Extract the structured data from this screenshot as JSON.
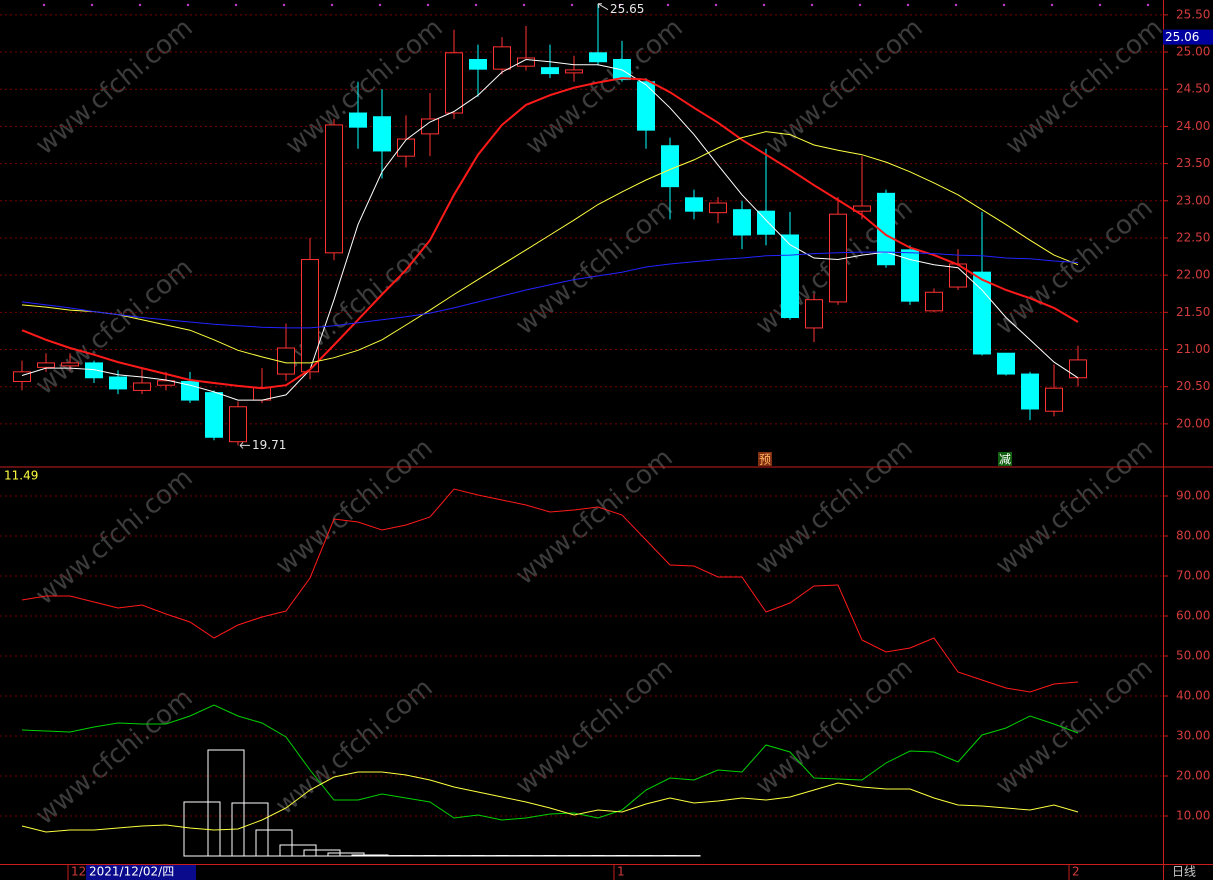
{
  "watermark": "www.cfchi.com",
  "chart_data": [
    {
      "type": "candlestick",
      "ylim": [
        19.42,
        25.7
      ],
      "yticks": [
        {
          "value": 20,
          "label": "20.00"
        },
        {
          "value": 20.5,
          "label": "20.50"
        },
        {
          "value": 21,
          "label": "21.00"
        },
        {
          "value": 21.5,
          "label": "21.50"
        },
        {
          "value": 22,
          "label": "22.00"
        },
        {
          "value": 22.5,
          "label": "22.50"
        },
        {
          "value": 23,
          "label": "23.00"
        },
        {
          "value": 23.5,
          "label": "23.50"
        },
        {
          "value": 24,
          "label": "24.00"
        },
        {
          "value": 24.5,
          "label": "24.50"
        },
        {
          "value": 25,
          "label": "25.00"
        },
        {
          "value": 25.5,
          "label": "25.50"
        }
      ],
      "grid": true,
      "up_color": "#ff3232",
      "down_color": "#00ffff",
      "open": [
        20.57,
        20.76,
        20.78,
        20.82,
        20.63,
        20.45,
        20.52,
        20.57,
        20.42,
        19.76,
        20.32,
        20.67,
        20.7,
        22.3,
        24.18,
        24.13,
        23.6,
        23.9,
        24.18,
        24.9,
        24.77,
        24.81,
        24.79,
        24.72,
        24.99,
        24.9,
        24.6,
        23.74,
        23.04,
        22.84,
        22.88,
        22.86,
        22.54,
        21.29,
        21.64,
        22.86,
        23.1,
        22.34,
        21.52,
        21.84,
        22.04,
        20.95,
        20.67,
        20.17,
        20.62
      ],
      "high": [
        20.85,
        20.95,
        20.95,
        20.85,
        20.72,
        20.75,
        20.7,
        20.7,
        20.45,
        20.3,
        20.75,
        21.35,
        22.5,
        24.1,
        24.6,
        24.5,
        24.15,
        24.45,
        25.3,
        25.1,
        25.2,
        25.35,
        25.1,
        24.95,
        25.65,
        25.15,
        24.65,
        23.85,
        23.15,
        23.05,
        23.0,
        23.7,
        22.85,
        21.75,
        23.05,
        23.6,
        23.15,
        22.4,
        21.82,
        22.35,
        22.85,
        20.95,
        20.7,
        20.8,
        21.05
      ],
      "low": [
        20.45,
        20.7,
        20.72,
        20.55,
        20.4,
        20.4,
        20.45,
        20.28,
        19.78,
        19.71,
        20.28,
        20.58,
        20.6,
        22.2,
        23.7,
        23.3,
        23.45,
        23.6,
        24.1,
        24.4,
        24.7,
        24.75,
        24.65,
        24.6,
        24.82,
        24.6,
        23.7,
        22.75,
        22.75,
        22.7,
        22.35,
        22.4,
        21.4,
        21.1,
        21.6,
        22.75,
        22.1,
        21.6,
        21.5,
        21.8,
        20.92,
        20.65,
        20.05,
        20.1,
        20.5
      ],
      "close": [
        20.7,
        20.82,
        20.82,
        20.62,
        20.47,
        20.55,
        20.58,
        20.32,
        19.82,
        20.23,
        20.49,
        21.02,
        22.21,
        24.02,
        23.99,
        23.67,
        23.83,
        24.1,
        24.99,
        24.77,
        25.07,
        24.92,
        24.71,
        24.76,
        24.87,
        24.63,
        23.95,
        23.19,
        22.86,
        22.97,
        22.54,
        22.55,
        21.43,
        21.67,
        22.82,
        22.93,
        22.14,
        21.65,
        21.77,
        22.15,
        20.94,
        20.67,
        20.2,
        20.48,
        20.86
      ],
      "series": [
        {
          "color": "#ffffff",
          "values": [
            20.65,
            20.75,
            20.75,
            20.73,
            20.66,
            20.63,
            20.59,
            20.52,
            20.43,
            20.32,
            20.32,
            20.39,
            20.73,
            21.67,
            22.68,
            23.39,
            23.82,
            24.06,
            24.2,
            24.42,
            24.73,
            24.9,
            24.87,
            24.83,
            24.83,
            24.76,
            24.56,
            24.25,
            23.89,
            23.48,
            23.08,
            22.74,
            22.41,
            22.23,
            22.21,
            22.27,
            22.31,
            22.21,
            22.14,
            22.1,
            21.8,
            21.43,
            21.13,
            20.83,
            20.62
          ]
        },
        {
          "color": "#ff1a1a",
          "values": [
            21.26,
            21.13,
            21.02,
            20.93,
            20.83,
            20.75,
            20.67,
            20.59,
            20.55,
            20.51,
            20.48,
            20.52,
            20.73,
            21.06,
            21.4,
            21.74,
            22.07,
            22.47,
            23.08,
            23.62,
            24.02,
            24.29,
            24.42,
            24.52,
            24.59,
            24.65,
            24.63,
            24.46,
            24.25,
            24.05,
            23.82,
            23.62,
            23.42,
            23.21,
            23.01,
            22.81,
            22.54,
            22.37,
            22.27,
            22.14,
            21.94,
            21.8,
            21.69,
            21.56,
            21.37
          ]
        },
        {
          "color": "#ffff40",
          "values": [
            21.6,
            21.57,
            21.53,
            21.51,
            21.47,
            21.4,
            21.33,
            21.26,
            21.13,
            20.99,
            20.9,
            20.82,
            20.82,
            20.89,
            20.99,
            21.13,
            21.33,
            21.53,
            21.74,
            21.94,
            22.14,
            22.34,
            22.54,
            22.74,
            22.95,
            23.12,
            23.28,
            23.42,
            23.55,
            23.71,
            23.85,
            23.93,
            23.89,
            23.75,
            23.68,
            23.62,
            23.52,
            23.39,
            23.24,
            23.08,
            22.88,
            22.68,
            22.47,
            22.27,
            22.14
          ]
        },
        {
          "color": "#2323ff",
          "values": [
            21.64,
            21.6,
            21.56,
            21.51,
            21.47,
            21.43,
            21.4,
            21.37,
            21.34,
            21.32,
            21.3,
            21.29,
            21.29,
            21.32,
            21.36,
            21.4,
            21.44,
            21.49,
            21.56,
            21.64,
            21.72,
            21.8,
            21.87,
            21.94,
            21.99,
            22.04,
            22.11,
            22.15,
            22.18,
            22.21,
            22.23,
            22.26,
            22.27,
            22.29,
            22.3,
            22.31,
            22.31,
            22.3,
            22.29,
            22.27,
            22.26,
            22.23,
            22.22,
            22.19,
            22.17
          ]
        }
      ],
      "price_marker": 25.06,
      "annotations": [
        "预",
        "减"
      ]
    },
    {
      "type": "line",
      "ylim": [
        -2,
        97.25
      ],
      "yticks": [
        {
          "value": 10,
          "label": "10.00"
        },
        {
          "value": 20,
          "label": "20.00"
        },
        {
          "value": 30,
          "label": "30.00"
        },
        {
          "value": 40,
          "label": "40.00"
        },
        {
          "value": 50,
          "label": "50.00"
        },
        {
          "value": 60,
          "label": "60.00"
        },
        {
          "value": 70,
          "label": "70.00"
        },
        {
          "value": 80,
          "label": "80.00"
        },
        {
          "value": 90,
          "label": "90.00"
        }
      ],
      "grid": true,
      "indicator_value": 11.49,
      "series": [
        {
          "color": "#ff1a1a",
          "values": [
            64,
            65,
            65,
            63.5,
            62,
            62.75,
            60.5,
            58.5,
            54.5,
            57.75,
            59.75,
            61.25,
            69.5,
            84.25,
            83.5,
            81.5,
            82.75,
            84.75,
            91.75,
            90.25,
            89,
            87.75,
            86,
            86.5,
            87.25,
            85.25,
            79,
            72.75,
            72.5,
            69.75,
            69.75,
            61,
            63.25,
            67.5,
            67.75,
            54,
            51,
            52,
            54.5,
            46,
            44,
            42,
            41,
            43,
            43.5
          ]
        },
        {
          "color": "#00d200",
          "values": [
            31.5,
            31.25,
            31,
            32.25,
            33.25,
            33,
            33,
            35,
            37.75,
            35,
            33.25,
            29.75,
            21.5,
            14,
            14,
            15.5,
            14.5,
            13.5,
            9.5,
            10.25,
            9,
            9.5,
            10.5,
            10.75,
            9.5,
            11.5,
            16.5,
            19.5,
            19,
            21.5,
            21,
            27.75,
            26,
            19.5,
            19.25,
            19,
            23.25,
            26.25,
            26,
            23.5,
            30.25,
            32,
            35,
            33,
            30.75
          ]
        },
        {
          "color": "#ffff40",
          "values": [
            7.5,
            6,
            6.5,
            6.5,
            7,
            7.5,
            7.75,
            7,
            6.5,
            6.75,
            9,
            12,
            16.5,
            19.75,
            21,
            21,
            20.25,
            19,
            17.25,
            16,
            14.75,
            13.5,
            12,
            10.25,
            11.5,
            11,
            13,
            14.5,
            13.25,
            13.75,
            14.5,
            14,
            14.75,
            16.5,
            18.25,
            17.25,
            16.75,
            16.75,
            14.5,
            12.75,
            12.5,
            12,
            11.5,
            12.75,
            11
          ]
        }
      ],
      "histogram": {
        "color": "#ffffff",
        "values": [
          null,
          null,
          null,
          null,
          null,
          null,
          null,
          13.5,
          26.5,
          13.25,
          6.5,
          2.75,
          1.5,
          0.75,
          0.25,
          0.1,
          0.1,
          0.1,
          0.1,
          0.1,
          0.1,
          0.1,
          0.1,
          0.1,
          0.1,
          0.1,
          0.1,
          0.1,
          null,
          null,
          null,
          null,
          null,
          null,
          null,
          null,
          null,
          null,
          null,
          null,
          null,
          null,
          null,
          null,
          null
        ]
      },
      "x_axis_labels": [
        "12",
        "1",
        "2"
      ],
      "cursor_label": "2021/12/02/四",
      "period_label": "日线"
    }
  ]
}
